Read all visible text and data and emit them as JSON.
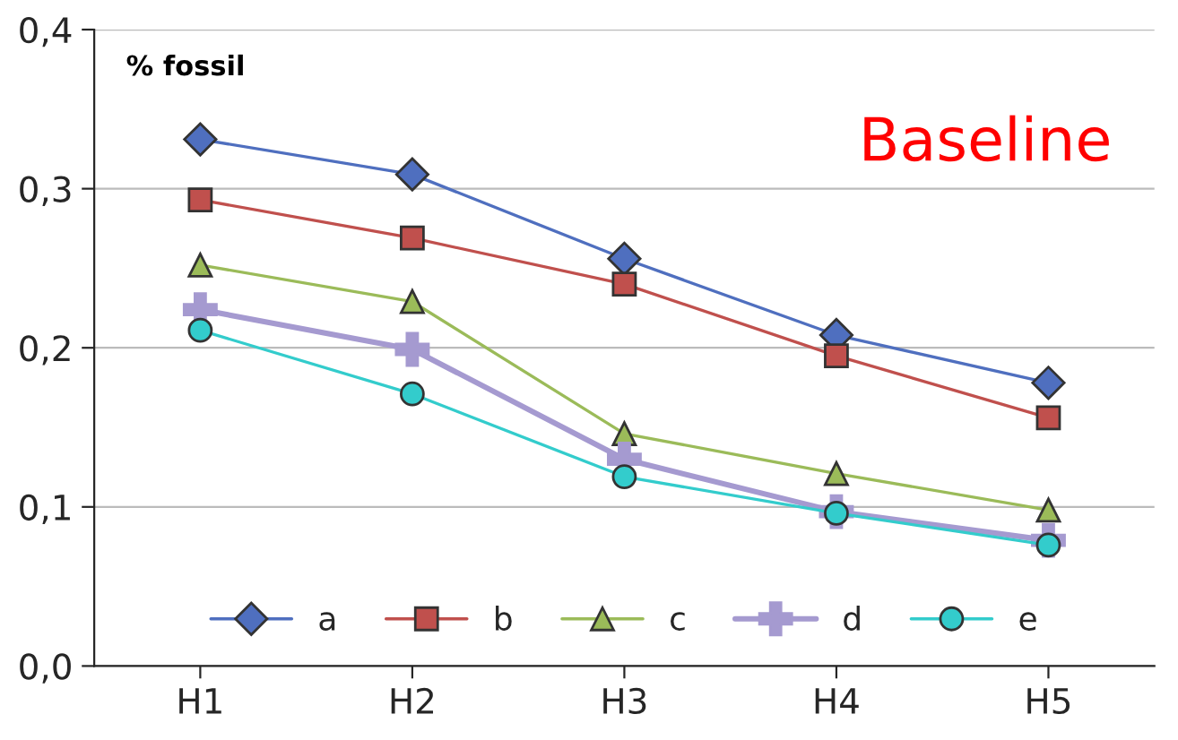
{
  "chart_data": {
    "type": "line",
    "categories": [
      "H1",
      "H2",
      "H3",
      "H4",
      "H5"
    ],
    "series": [
      {
        "name": "a",
        "color": "#4f6fbf",
        "marker": "diamond",
        "values": [
          0.331,
          0.309,
          0.256,
          0.208,
          0.178
        ]
      },
      {
        "name": "b",
        "color": "#c0504d",
        "marker": "square",
        "values": [
          0.293,
          0.269,
          0.24,
          0.195,
          0.156
        ]
      },
      {
        "name": "c",
        "color": "#9bbb59",
        "marker": "triangle",
        "values": [
          0.252,
          0.229,
          0.146,
          0.121,
          0.098
        ]
      },
      {
        "name": "d",
        "color": "#a59ad0",
        "marker": "cross",
        "values": [
          0.224,
          0.199,
          0.13,
          0.097,
          0.079
        ]
      },
      {
        "name": "e",
        "color": "#33cccc",
        "marker": "circle",
        "values": [
          0.211,
          0.171,
          0.119,
          0.096,
          0.076
        ]
      }
    ],
    "ylim": [
      0,
      0.4
    ],
    "yticks": [
      {
        "value": 0,
        "label": "0,0"
      },
      {
        "value": 0.1,
        "label": "0,1"
      },
      {
        "value": 0.2,
        "label": "0,2"
      },
      {
        "value": 0.3,
        "label": "0,3"
      },
      {
        "value": 0.4,
        "label": "0,4"
      }
    ],
    "grid": "y",
    "legend": "bottom",
    "line_style": "solid",
    "annotations": [
      "% fossil",
      "Baseline"
    ]
  }
}
